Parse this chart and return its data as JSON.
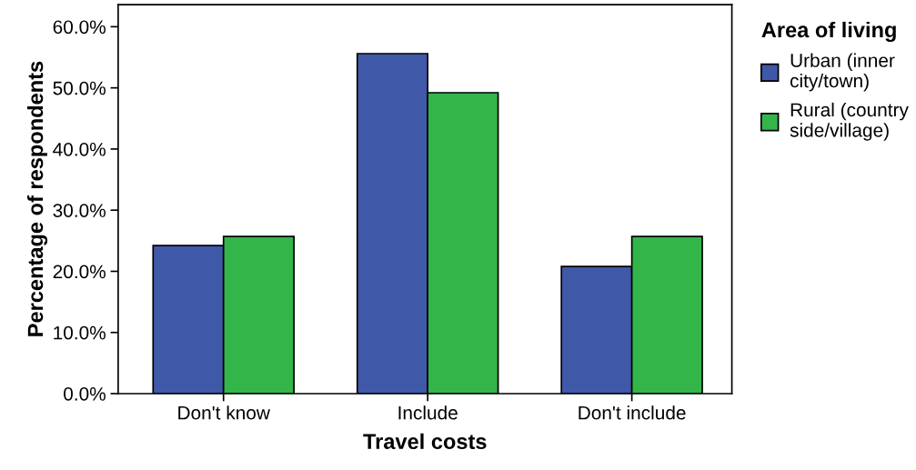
{
  "chart_data": {
    "type": "bar",
    "xlabel": "Travel costs",
    "ylabel": "Percentage of respondents",
    "legend_title": "Area of living",
    "categories": [
      "Don't know",
      "Include",
      "Don't include"
    ],
    "series": [
      {
        "name": "Urban (inner\ncity/town)",
        "color": "#3f58a8",
        "values": [
          24.2,
          55.6,
          20.8
        ]
      },
      {
        "name": "Rural (country\nside/village)",
        "color": "#33b54a",
        "values": [
          25.7,
          49.2,
          25.7
        ]
      }
    ],
    "ylim": [
      0,
      63.6
    ],
    "yticks": [
      {
        "value": 0,
        "label": "0.0%"
      },
      {
        "value": 10,
        "label": "10.0%"
      },
      {
        "value": 20,
        "label": "20.0%"
      },
      {
        "value": 30,
        "label": "30.0%"
      },
      {
        "value": 40,
        "label": "40.0%"
      },
      {
        "value": 50,
        "label": "50.0%"
      },
      {
        "value": 60,
        "label": "60.0%"
      }
    ],
    "grid": false,
    "legend": "right"
  }
}
